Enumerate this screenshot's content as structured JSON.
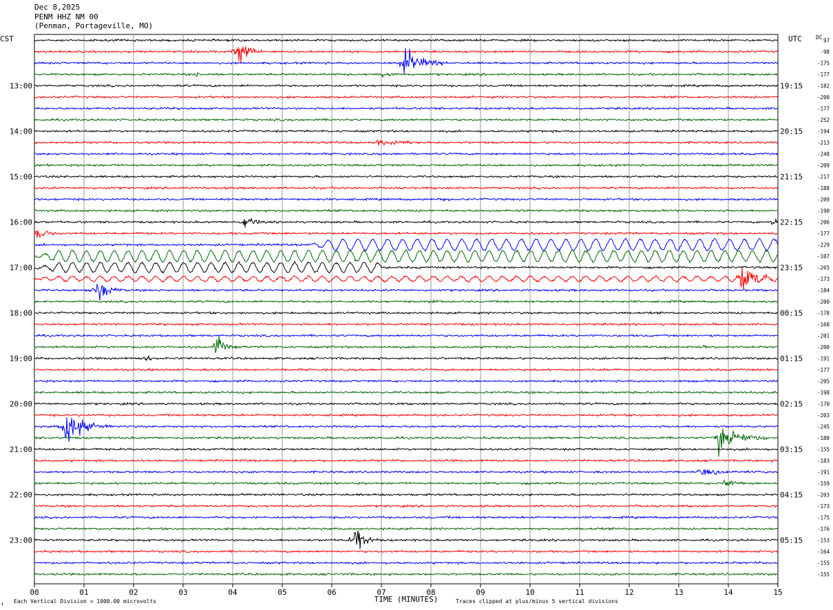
{
  "header": {
    "date": "Dec 8,2025",
    "station": "PENM HHZ NM 00",
    "location": "(Penman, Portageville, MO)"
  },
  "labels": {
    "left_timezone": "CST",
    "right_timezone": "UTC",
    "dc_label": "DC",
    "x_axis_title": "TIME (MINUTES)",
    "footer_left": "Each Vertical Division = 1000.00 microvolts",
    "footer_right": "Traces clipped at plus/minus 5 vertical divisions",
    "corner_mark": "↓"
  },
  "colors": {
    "cycle": [
      "#000000",
      "#ff0000",
      "#0000ff",
      "#006400"
    ],
    "grid": "#7f7f7f"
  },
  "chart_data": {
    "type": "line",
    "title": "PENM HHZ NM 00",
    "xlabel": "TIME (MINUTES)",
    "xlim": [
      0,
      15
    ],
    "x_ticks": [
      "00",
      "01",
      "02",
      "03",
      "04",
      "05",
      "06",
      "07",
      "08",
      "09",
      "10",
      "11",
      "12",
      "13",
      "14",
      "15"
    ],
    "trace_count": 48,
    "trace_minutes": 15,
    "left_hour_labels": [
      {
        "trace": 4,
        "label": "13:00"
      },
      {
        "trace": 8,
        "label": "14:00"
      },
      {
        "trace": 12,
        "label": "15:00"
      },
      {
        "trace": 16,
        "label": "16:00"
      },
      {
        "trace": 20,
        "label": "17:00"
      },
      {
        "trace": 24,
        "label": "18:00"
      },
      {
        "trace": 28,
        "label": "19:00"
      },
      {
        "trace": 32,
        "label": "20:00"
      },
      {
        "trace": 36,
        "label": "21:00"
      },
      {
        "trace": 40,
        "label": "22:00"
      },
      {
        "trace": 44,
        "label": "23:00"
      }
    ],
    "right_hour_labels": [
      {
        "trace": 4,
        "label": "19:15"
      },
      {
        "trace": 8,
        "label": "20:15"
      },
      {
        "trace": 12,
        "label": "21:15"
      },
      {
        "trace": 16,
        "label": "22:15"
      },
      {
        "trace": 20,
        "label": "23:15"
      },
      {
        "trace": 24,
        "label": "00:15"
      },
      {
        "trace": 28,
        "label": "01:15"
      },
      {
        "trace": 32,
        "label": "02:15"
      },
      {
        "trace": 36,
        "label": "03:15"
      },
      {
        "trace": 40,
        "label": "04:15"
      },
      {
        "trace": 44,
        "label": "05:15"
      }
    ],
    "dc_offsets": [
      "97",
      "-98",
      "-175",
      "-177",
      "-182",
      "-200",
      "-177",
      "-252",
      "-194",
      "-213",
      "-248",
      "-209",
      "-217",
      "-188",
      "-209",
      "-190",
      "-206",
      "-177",
      "-229",
      "-107",
      "-265",
      "-173",
      "-184",
      "-200",
      "-178",
      "-160",
      "-201",
      "-200",
      "-191",
      "-177",
      "-205",
      "-198",
      "-170",
      "-203",
      "-245",
      "-180",
      "-155",
      "-183",
      "-191",
      "-159",
      "-203",
      "-173",
      "-175",
      "-176",
      "-153",
      "-164",
      "-155",
      "-155"
    ],
    "events": [
      {
        "trace": 1,
        "minute": 4.1,
        "amp": 3.0,
        "dur": 0.5
      },
      {
        "trace": 2,
        "minute": 7.45,
        "amp": 3.0,
        "dur": 0.9
      },
      {
        "trace": 3,
        "minute": 7.0,
        "amp": 0.6,
        "dur": 0.6
      },
      {
        "trace": 3,
        "minute": 3.25,
        "amp": 0.5,
        "dur": 0.3
      },
      {
        "trace": 9,
        "minute": 6.9,
        "amp": 0.5,
        "dur": 1.5
      },
      {
        "trace": 14,
        "minute": 8.25,
        "amp": 0.5,
        "dur": 0.2
      },
      {
        "trace": 16,
        "minute": 4.2,
        "amp": 1.2,
        "dur": 0.6
      },
      {
        "trace": 16,
        "minute": 14.85,
        "amp": 1.2,
        "dur": 0.3
      },
      {
        "trace": 17,
        "minute": 0.05,
        "amp": 2.0,
        "dur": 0.5
      },
      {
        "trace": 21,
        "minute": 14.25,
        "amp": 3.0,
        "dur": 0.7
      },
      {
        "trace": 22,
        "minute": 1.25,
        "amp": 2.5,
        "dur": 0.6
      },
      {
        "trace": 23,
        "minute": 8.0,
        "amp": 0.4,
        "dur": 0.4
      },
      {
        "trace": 27,
        "minute": 3.65,
        "amp": 2.0,
        "dur": 0.5
      },
      {
        "trace": 27,
        "minute": 13.5,
        "amp": 0.5,
        "dur": 0.3
      },
      {
        "trace": 28,
        "minute": 2.2,
        "amp": 0.5,
        "dur": 0.6
      },
      {
        "trace": 34,
        "minute": 0.6,
        "amp": 3.0,
        "dur": 1.0
      },
      {
        "trace": 35,
        "minute": 13.8,
        "amp": 3.0,
        "dur": 1.0
      },
      {
        "trace": 38,
        "minute": 13.4,
        "amp": 0.6,
        "dur": 1.5
      },
      {
        "trace": 39,
        "minute": 13.9,
        "amp": 1.0,
        "dur": 0.5
      },
      {
        "trace": 44,
        "minute": 6.45,
        "amp": 3.0,
        "dur": 0.5
      }
    ],
    "oscillations": [
      {
        "trace": 18,
        "start": 5.5,
        "end": 15,
        "amp": 0.8,
        "period": 0.3
      },
      {
        "trace": 19,
        "start": 0,
        "end": 15,
        "amp": 0.8,
        "period": 0.28
      },
      {
        "trace": 20,
        "start": 0,
        "end": 7,
        "amp": 0.7,
        "period": 0.28
      },
      {
        "trace": 21,
        "start": 0,
        "end": 15,
        "amp": 0.35,
        "period": 0.28
      }
    ]
  }
}
